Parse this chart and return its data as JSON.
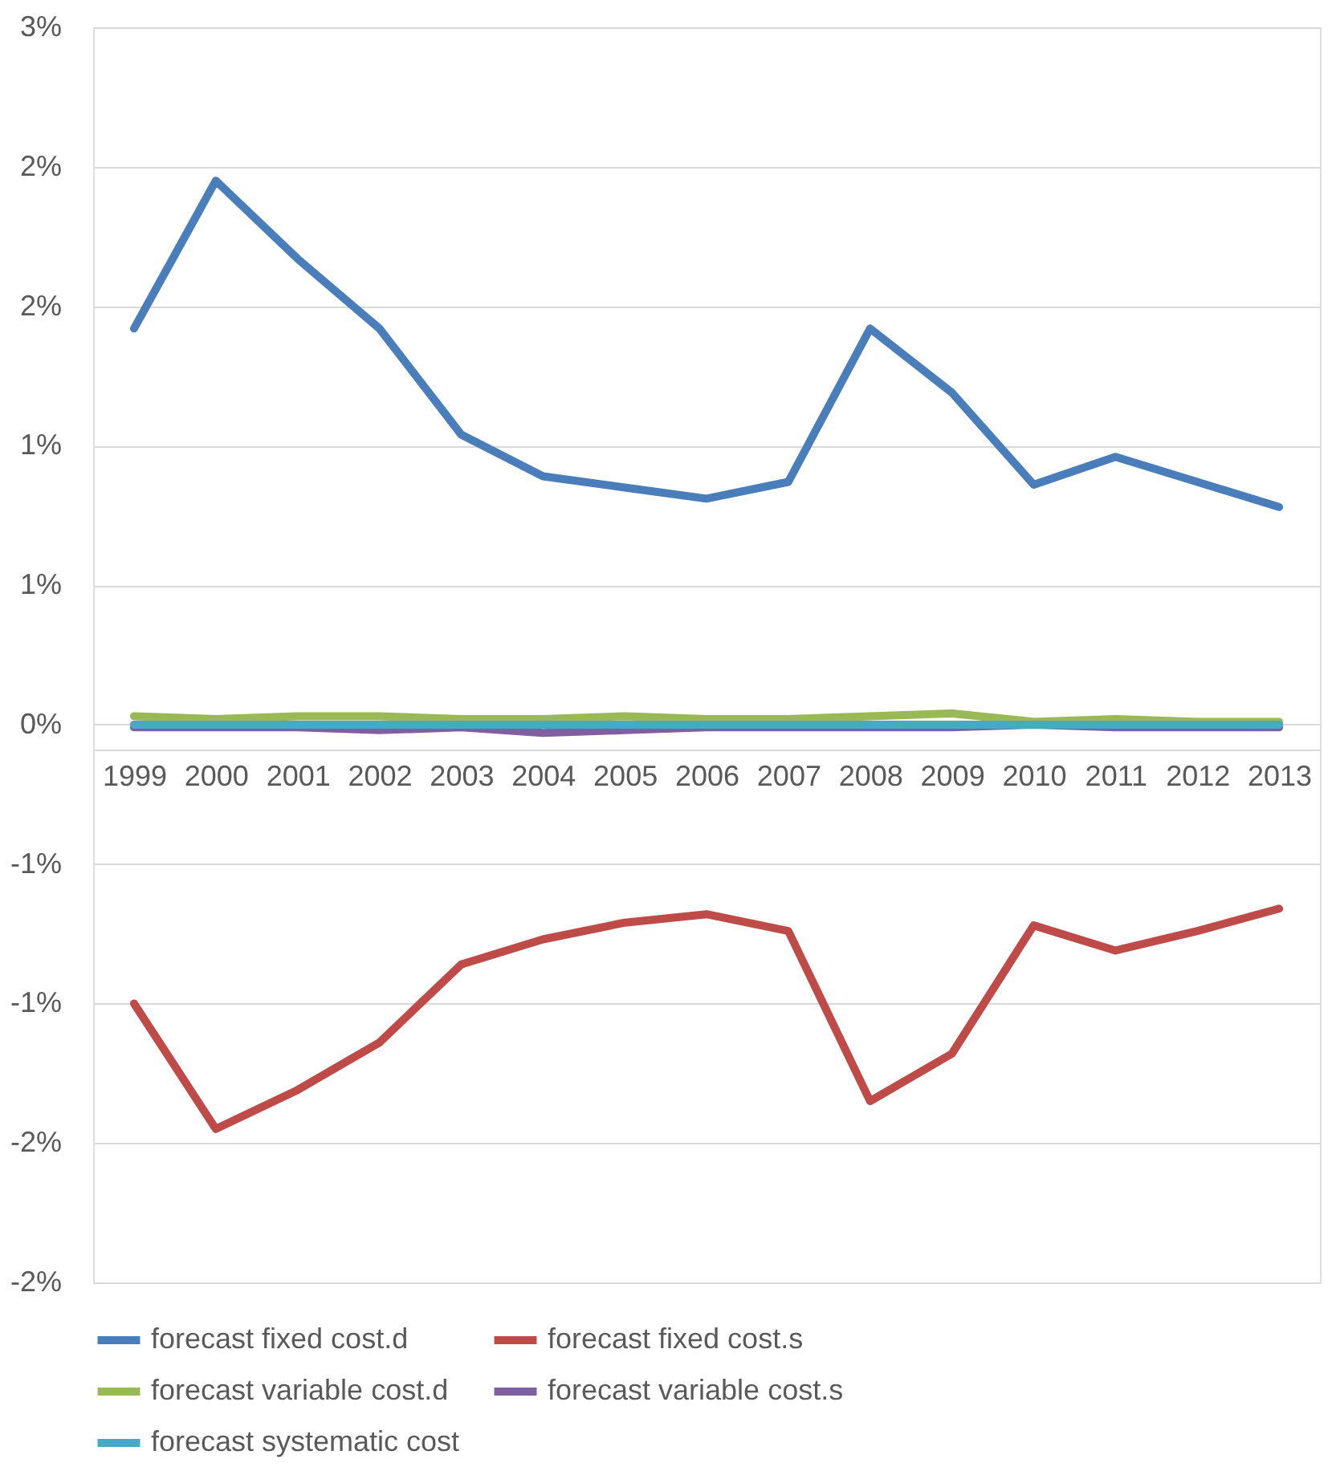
{
  "chart_data": {
    "type": "line",
    "categories": [
      "1999",
      "2000",
      "2001",
      "2002",
      "2003",
      "2004",
      "2005",
      "2006",
      "2007",
      "2008",
      "2009",
      "2010",
      "2011",
      "2012",
      "2013"
    ],
    "series": [
      {
        "name": "forecast fixed cost.d",
        "color": "#4a7ebb",
        "values": [
          1.42,
          1.95,
          1.67,
          1.42,
          1.04,
          0.89,
          0.85,
          0.81,
          0.87,
          1.42,
          1.19,
          0.86,
          0.96,
          0.87,
          0.78
        ]
      },
      {
        "name": "forecast fixed cost.s",
        "color": "#be4b48",
        "values": [
          -1.0,
          -1.45,
          -1.31,
          -1.14,
          -0.86,
          -0.77,
          -0.71,
          -0.68,
          -0.74,
          -1.35,
          -1.18,
          -0.72,
          -0.81,
          -0.74,
          -0.66
        ]
      },
      {
        "name": "forecast variable cost.d",
        "color": "#98b954",
        "values": [
          0.03,
          0.02,
          0.03,
          0.03,
          0.02,
          0.02,
          0.03,
          0.02,
          0.02,
          0.03,
          0.04,
          0.01,
          0.02,
          0.01,
          0.01
        ]
      },
      {
        "name": "forecast variable cost.s",
        "color": "#7d60a0",
        "values": [
          -0.01,
          -0.01,
          -0.01,
          -0.02,
          -0.01,
          -0.03,
          -0.02,
          -0.01,
          -0.01,
          -0.01,
          -0.01,
          0.0,
          -0.01,
          -0.01,
          -0.01
        ]
      },
      {
        "name": "forecast systematic cost",
        "color": "#46aac5",
        "values": [
          0.0,
          0.0,
          0.0,
          0.0,
          0.0,
          0.0,
          0.0,
          0.0,
          0.0,
          0.0,
          0.0,
          0.0,
          0.0,
          0.0,
          0.0
        ]
      }
    ],
    "ylim": [
      -2,
      2.5
    ],
    "yticks": [
      {
        "value": -2,
        "label": "-2%"
      },
      {
        "value": -1.5,
        "label": "-2%"
      },
      {
        "value": -1,
        "label": "-1%"
      },
      {
        "value": -0.5,
        "label": "-1%"
      },
      {
        "value": 0,
        "label": "0%"
      },
      {
        "value": 0.5,
        "label": "1%"
      },
      {
        "value": 1,
        "label": "1%"
      },
      {
        "value": 1.5,
        "label": "2%"
      },
      {
        "value": 2,
        "label": "2%"
      },
      {
        "value": 2.5,
        "label": "3%"
      }
    ],
    "grid": "y",
    "legend": "bottom",
    "marker": "none",
    "line_style": "solid"
  }
}
